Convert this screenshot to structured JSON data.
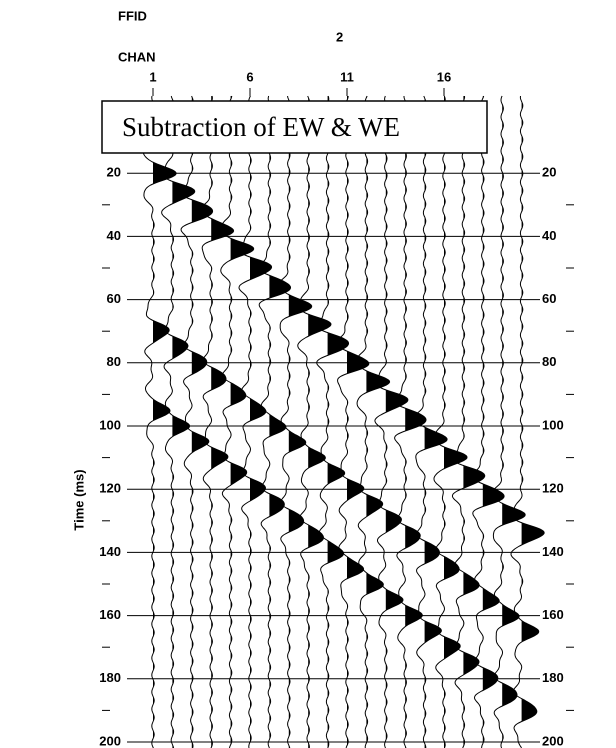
{
  "chart_data": {
    "type": "wiggle",
    "title": "Subtraction of EW & WE",
    "header_labels": [
      "FFID",
      "CHAN"
    ],
    "ffid": "2",
    "y_label": "Time (ms)",
    "categories": [
      "1",
      null,
      null,
      null,
      null,
      "6",
      null,
      null,
      null,
      null,
      "11",
      null,
      null,
      null,
      null,
      "16",
      null,
      null,
      null,
      null
    ],
    "series": [
      {
        "color": "#000000",
        "values": [
          20,
          26,
          32,
          38,
          44,
          50,
          56,
          62,
          68,
          74,
          80,
          86,
          92,
          98,
          104,
          110,
          116,
          122,
          128,
          134
        ]
      },
      {
        "color": "#000000",
        "values": [
          70,
          75,
          80,
          85,
          90,
          95,
          100,
          105,
          110,
          115,
          120,
          125,
          130,
          135,
          140,
          145,
          150,
          155,
          160,
          165
        ]
      },
      {
        "color": "#000000",
        "values": [
          95,
          100,
          105,
          110,
          115,
          120,
          125,
          130,
          135,
          140,
          145,
          150,
          155,
          160,
          165,
          170,
          175,
          180,
          185,
          190
        ]
      }
    ],
    "ylim": [
      0,
      200
    ],
    "yticks": [
      20,
      40,
      60,
      80,
      100,
      120,
      140,
      160,
      180,
      200
    ],
    "minor_yticks": [
      30,
      50,
      70,
      90,
      110,
      130,
      150,
      170,
      190
    ],
    "grid": true
  }
}
